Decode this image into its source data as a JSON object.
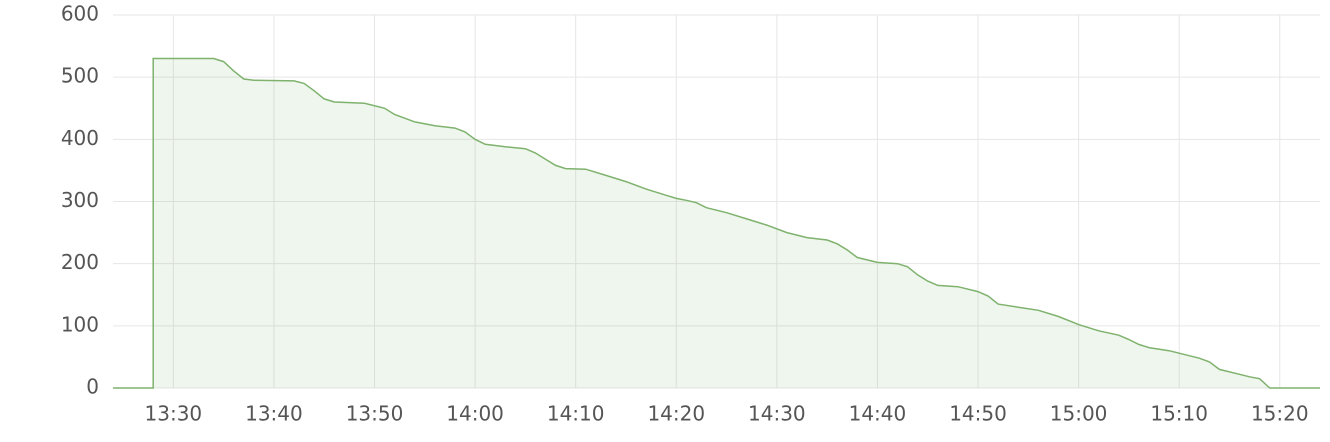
{
  "chart_data": {
    "type": "area",
    "color": "#7eb26d",
    "grid": true,
    "xlim": [
      "13:24",
      "15:24"
    ],
    "xticks": [
      "13:30",
      "13:40",
      "13:50",
      "14:00",
      "14:10",
      "14:20",
      "14:30",
      "14:40",
      "14:50",
      "15:00",
      "15:10",
      "15:20"
    ],
    "ylim": [
      0,
      600
    ],
    "yticks": [
      0,
      100,
      200,
      300,
      400,
      500,
      600
    ],
    "x": [
      "13:24",
      "13:28",
      "13:28",
      "13:34",
      "13:35",
      "13:36",
      "13:37",
      "13:38",
      "13:42",
      "13:43",
      "13:44",
      "13:45",
      "13:46",
      "13:49",
      "13:51",
      "13:52",
      "13:54",
      "13:56",
      "13:58",
      "13:59",
      "14:00",
      "14:01",
      "14:03",
      "14:05",
      "14:06",
      "14:07",
      "14:08",
      "14:09",
      "14:11",
      "14:13",
      "14:15",
      "14:17",
      "14:19",
      "14:20",
      "14:21",
      "14:22",
      "14:23",
      "14:25",
      "14:27",
      "14:29",
      "14:31",
      "14:33",
      "14:35",
      "14:36",
      "14:37",
      "14:38",
      "14:40",
      "14:42",
      "14:43",
      "14:44",
      "14:45",
      "14:46",
      "14:48",
      "14:50",
      "14:51",
      "14:52",
      "14:54",
      "14:56",
      "14:58",
      "15:00",
      "15:02",
      "15:04",
      "15:05",
      "15:06",
      "15:07",
      "15:09",
      "15:11",
      "15:12",
      "15:13",
      "15:14",
      "15:16",
      "15:17",
      "15:18",
      "15:19",
      "15:24"
    ],
    "values": [
      0,
      0,
      530,
      530,
      525,
      510,
      497,
      495,
      494,
      490,
      478,
      465,
      460,
      458,
      450,
      440,
      428,
      422,
      418,
      412,
      400,
      392,
      388,
      385,
      378,
      368,
      358,
      353,
      352,
      342,
      332,
      320,
      310,
      305,
      302,
      298,
      290,
      282,
      272,
      262,
      250,
      242,
      238,
      232,
      222,
      210,
      202,
      200,
      195,
      182,
      172,
      165,
      163,
      155,
      148,
      135,
      130,
      125,
      115,
      102,
      92,
      85,
      78,
      70,
      65,
      60,
      52,
      48,
      42,
      30,
      22,
      18,
      15,
      0,
      0
    ]
  }
}
